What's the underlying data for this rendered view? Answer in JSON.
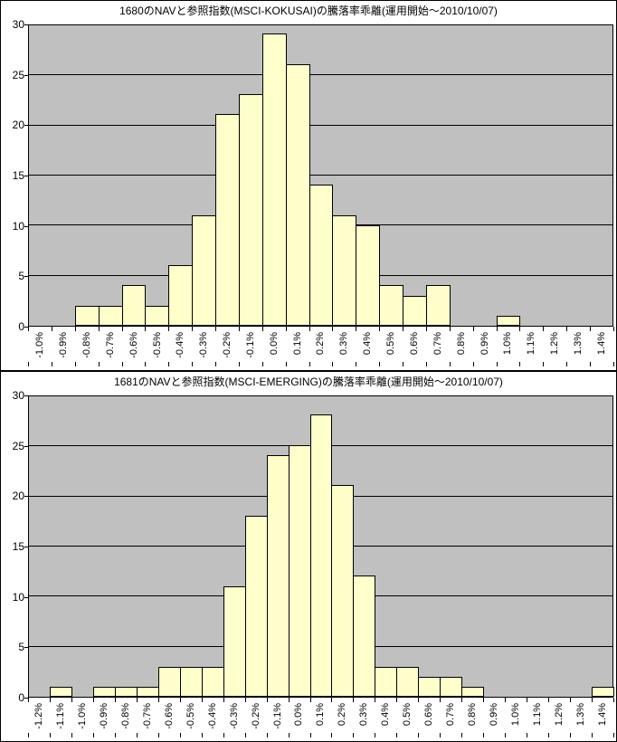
{
  "style": {
    "bar_fill": "#FFFFCC",
    "plot_bg": "#C0C0C0",
    "line_color": "#000000",
    "background": "#FFFFFF"
  },
  "chart_data": [
    {
      "type": "bar",
      "title": "1680のNAVと参照指数(MSCI-KOKUSAI)の騰落率乖離(運用開始～2010/10/07)",
      "xlabel": "",
      "ylabel": "",
      "ylim": [
        0,
        30
      ],
      "yticks": [
        0,
        5,
        10,
        15,
        20,
        25,
        30
      ],
      "grid": true,
      "legend": "none",
      "categories": [
        "-1.0%",
        "-0.9%",
        "-0.8%",
        "-0.7%",
        "-0.6%",
        "-0.5%",
        "-0.4%",
        "-0.3%",
        "-0.2%",
        "-0.1%",
        "0.0%",
        "0.1%",
        "0.2%",
        "0.3%",
        "0.4%",
        "0.5%",
        "0.6%",
        "0.7%",
        "0.8%",
        "0.9%",
        "1.0%",
        "1.1%",
        "1.2%",
        "1.3%",
        "1.4%"
      ],
      "values": [
        0,
        0,
        2,
        2,
        4,
        2,
        6,
        11,
        21,
        23,
        29,
        26,
        14,
        11,
        10,
        4,
        3,
        4,
        0,
        0,
        1,
        0,
        0,
        0,
        0
      ]
    },
    {
      "type": "bar",
      "title": "1681のNAVと参照指数(MSCI-EMERGING)の騰落率乖離(運用開始～2010/10/07)",
      "xlabel": "",
      "ylabel": "",
      "ylim": [
        0,
        30
      ],
      "yticks": [
        0,
        5,
        10,
        15,
        20,
        25,
        30
      ],
      "grid": true,
      "legend": "none",
      "categories": [
        "-1.2%",
        "-1.1%",
        "-1.0%",
        "-0.9%",
        "-0.8%",
        "-0.7%",
        "-0.6%",
        "-0.5%",
        "-0.4%",
        "-0.3%",
        "-0.2%",
        "-0.1%",
        "0.0%",
        "0.1%",
        "0.2%",
        "0.3%",
        "0.4%",
        "0.5%",
        "0.6%",
        "0.7%",
        "0.8%",
        "0.9%",
        "1.0%",
        "1.1%",
        "1.2%",
        "1.3%",
        "1.4%"
      ],
      "values": [
        0,
        1,
        0,
        1,
        1,
        1,
        3,
        3,
        3,
        11,
        18,
        24,
        25,
        28,
        21,
        12,
        3,
        3,
        2,
        2,
        1,
        0,
        0,
        0,
        0,
        0,
        1
      ]
    }
  ]
}
